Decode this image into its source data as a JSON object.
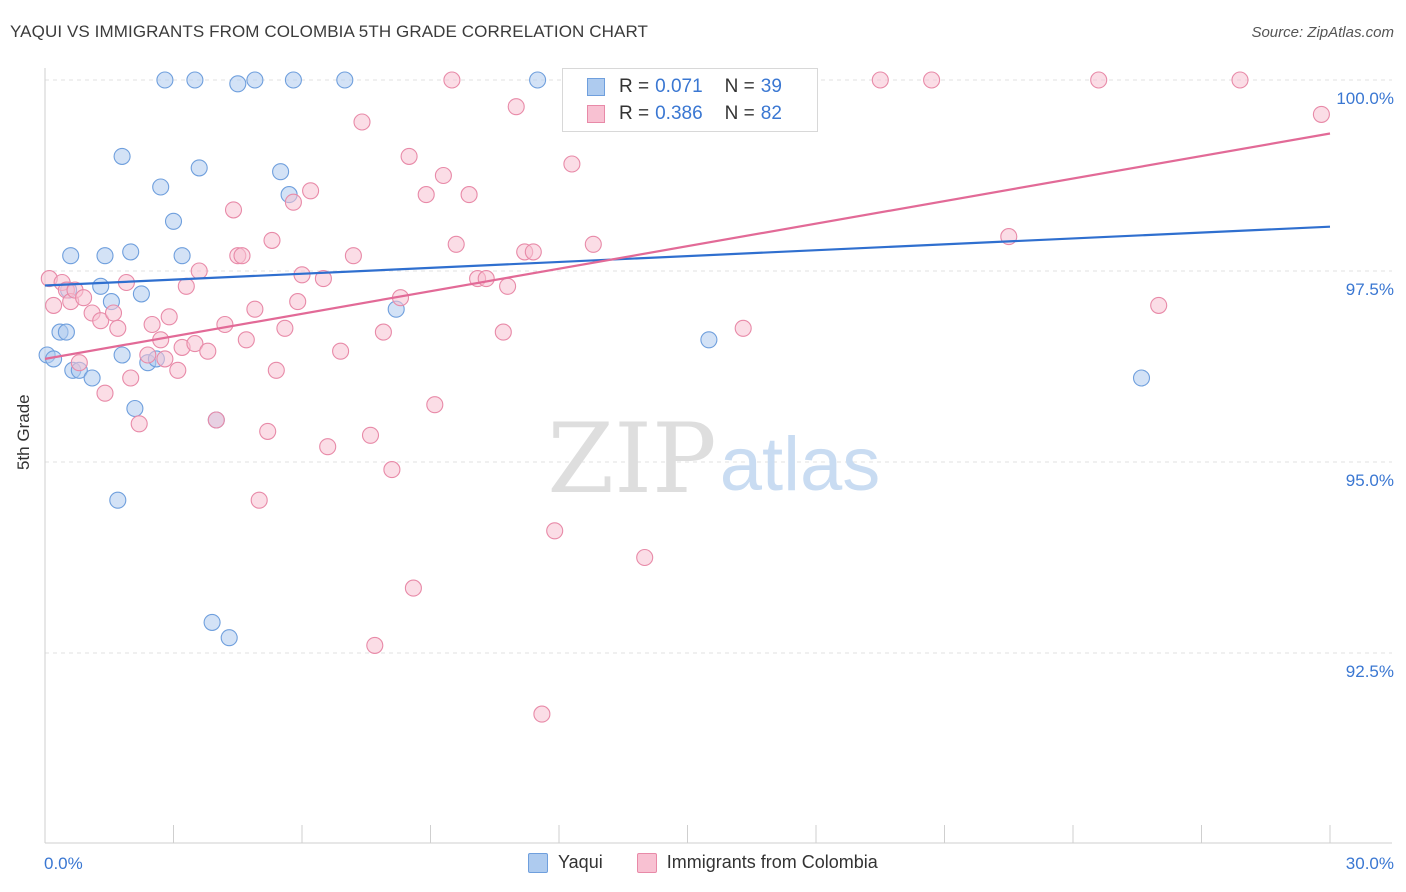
{
  "title": "YAQUI VS IMMIGRANTS FROM COLOMBIA 5TH GRADE CORRELATION CHART",
  "source": "Source: ZipAtlas.com",
  "watermark": {
    "zip": "ZIP",
    "atlas": "atlas"
  },
  "legend": {
    "r_label": "R =",
    "n_label": "N =",
    "rows": [
      {
        "r": "0.071",
        "n": "39",
        "fill": "#aecbef",
        "stroke": "#6f9fdd"
      },
      {
        "r": "0.386",
        "n": "82",
        "fill": "#f8c1d2",
        "stroke": "#e88aa8"
      }
    ]
  },
  "chart_data": {
    "type": "scatter",
    "title": "YAQUI VS IMMIGRANTS FROM COLOMBIA 5TH GRADE CORRELATION CHART",
    "xlabel": "",
    "ylabel": "5th Grade",
    "xlim": [
      0.0,
      30.0
    ],
    "ylim": [
      90.0,
      100.2
    ],
    "x_tick_labels": [
      {
        "value": 0.0,
        "label": "0.0%"
      },
      {
        "value": 30.0,
        "label": "30.0%"
      }
    ],
    "y_tick_labels": [
      {
        "value": 100.0,
        "label": "100.0%"
      },
      {
        "value": 97.5,
        "label": "97.5%"
      },
      {
        "value": 95.0,
        "label": "95.0%"
      },
      {
        "value": 92.5,
        "label": "92.5%"
      }
    ],
    "grid": true,
    "legend_position": "top-center",
    "series": [
      {
        "name": "Yaqui",
        "color": "#6f9fdd",
        "fill": "#aecbef",
        "trend_color": "#2f6fcf",
        "r": 0.071,
        "n": 39,
        "trend": [
          [
            0.0,
            97.31
          ],
          [
            30.0,
            98.08
          ]
        ],
        "points": [
          [
            0.05,
            96.4
          ],
          [
            0.2,
            96.35
          ],
          [
            0.35,
            96.7
          ],
          [
            0.5,
            96.7
          ],
          [
            0.55,
            97.25
          ],
          [
            0.6,
            97.7
          ],
          [
            0.65,
            96.2
          ],
          [
            0.8,
            96.2
          ],
          [
            1.1,
            96.1
          ],
          [
            1.3,
            97.3
          ],
          [
            1.4,
            97.7
          ],
          [
            1.55,
            97.1
          ],
          [
            1.7,
            94.5
          ],
          [
            1.8,
            99.0
          ],
          [
            1.8,
            96.4
          ],
          [
            2.0,
            97.75
          ],
          [
            2.1,
            95.7
          ],
          [
            2.25,
            97.2
          ],
          [
            2.4,
            96.3
          ],
          [
            2.6,
            96.35
          ],
          [
            2.7,
            98.6
          ],
          [
            2.8,
            100.0
          ],
          [
            3.0,
            98.15
          ],
          [
            3.2,
            97.7
          ],
          [
            3.5,
            100.0
          ],
          [
            3.6,
            98.85
          ],
          [
            3.9,
            92.9
          ],
          [
            4.0,
            95.55
          ],
          [
            4.3,
            92.7
          ],
          [
            4.5,
            99.95
          ],
          [
            4.9,
            100.0
          ],
          [
            5.5,
            98.8
          ],
          [
            5.7,
            98.5
          ],
          [
            5.8,
            100.0
          ],
          [
            7.0,
            100.0
          ],
          [
            8.2,
            97.0
          ],
          [
            11.5,
            100.0
          ],
          [
            15.5,
            96.6
          ],
          [
            25.6,
            96.1
          ]
        ]
      },
      {
        "name": "Immigrants from Colombia",
        "color": "#e88aa8",
        "fill": "#f8c1d2",
        "trend_color": "#e26a97",
        "r": 0.386,
        "n": 82,
        "trend": [
          [
            0.0,
            96.35
          ],
          [
            30.0,
            99.3
          ]
        ],
        "points": [
          [
            0.1,
            97.4
          ],
          [
            0.2,
            97.05
          ],
          [
            0.4,
            97.35
          ],
          [
            0.5,
            97.25
          ],
          [
            0.6,
            97.1
          ],
          [
            0.7,
            97.25
          ],
          [
            0.8,
            96.3
          ],
          [
            0.9,
            97.15
          ],
          [
            1.1,
            96.95
          ],
          [
            1.3,
            96.85
          ],
          [
            1.4,
            95.9
          ],
          [
            1.6,
            96.95
          ],
          [
            1.7,
            96.75
          ],
          [
            1.9,
            97.35
          ],
          [
            2.0,
            96.1
          ],
          [
            2.2,
            95.5
          ],
          [
            2.4,
            96.4
          ],
          [
            2.5,
            96.8
          ],
          [
            2.7,
            96.6
          ],
          [
            2.8,
            96.35
          ],
          [
            2.9,
            96.9
          ],
          [
            3.1,
            96.2
          ],
          [
            3.2,
            96.5
          ],
          [
            3.3,
            97.3
          ],
          [
            3.5,
            96.55
          ],
          [
            3.6,
            97.5
          ],
          [
            3.8,
            96.45
          ],
          [
            4.0,
            95.55
          ],
          [
            4.2,
            96.8
          ],
          [
            4.4,
            98.3
          ],
          [
            4.5,
            97.7
          ],
          [
            4.6,
            97.7
          ],
          [
            4.7,
            96.6
          ],
          [
            4.9,
            97.0
          ],
          [
            5.0,
            94.5
          ],
          [
            5.2,
            95.4
          ],
          [
            5.3,
            97.9
          ],
          [
            5.4,
            96.2
          ],
          [
            5.6,
            96.75
          ],
          [
            5.8,
            98.4
          ],
          [
            5.9,
            97.1
          ],
          [
            6.0,
            97.45
          ],
          [
            6.2,
            98.55
          ],
          [
            6.5,
            97.4
          ],
          [
            6.6,
            95.2
          ],
          [
            6.9,
            96.45
          ],
          [
            7.2,
            97.7
          ],
          [
            7.4,
            99.45
          ],
          [
            7.6,
            95.35
          ],
          [
            7.7,
            92.6
          ],
          [
            7.9,
            96.7
          ],
          [
            8.1,
            94.9
          ],
          [
            8.3,
            97.15
          ],
          [
            8.5,
            99.0
          ],
          [
            8.6,
            93.35
          ],
          [
            8.9,
            98.5
          ],
          [
            9.1,
            95.75
          ],
          [
            9.3,
            98.75
          ],
          [
            9.5,
            100.0
          ],
          [
            9.6,
            97.85
          ],
          [
            9.9,
            98.5
          ],
          [
            10.1,
            97.4
          ],
          [
            10.3,
            97.4
          ],
          [
            10.7,
            96.7
          ],
          [
            10.8,
            97.3
          ],
          [
            11.0,
            99.65
          ],
          [
            11.2,
            97.75
          ],
          [
            11.4,
            97.75
          ],
          [
            11.6,
            91.7
          ],
          [
            11.9,
            94.1
          ],
          [
            12.3,
            98.9
          ],
          [
            12.4,
            100.0
          ],
          [
            12.8,
            97.85
          ],
          [
            14.0,
            93.75
          ],
          [
            16.3,
            96.75
          ],
          [
            19.5,
            100.0
          ],
          [
            20.7,
            100.0
          ],
          [
            22.5,
            97.95
          ],
          [
            24.6,
            100.0
          ],
          [
            26.0,
            97.05
          ],
          [
            27.9,
            100.0
          ],
          [
            29.8,
            99.55
          ]
        ]
      }
    ]
  }
}
